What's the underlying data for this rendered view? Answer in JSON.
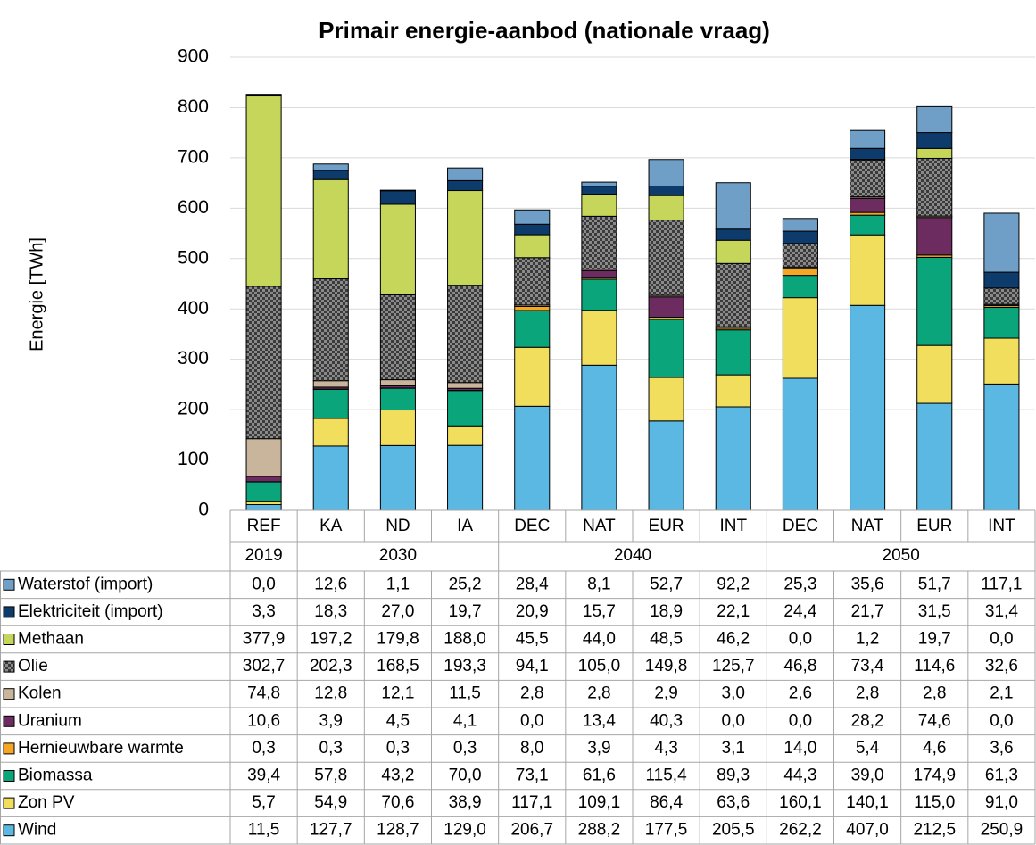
{
  "chart_data": {
    "type": "stacked_bar",
    "title": "Primair energie-aanbod (nationale vraag)",
    "y_label": "Energie [TWh]",
    "categories": [
      "REF",
      "KA",
      "ND",
      "IA",
      "DEC",
      "NAT",
      "EUR",
      "INT",
      "DEC",
      "NAT",
      "EUR",
      "INT"
    ],
    "groups": [
      {
        "label": "2019",
        "count": 1
      },
      {
        "label": "2030",
        "count": 3
      },
      {
        "label": "2040",
        "count": 4
      },
      {
        "label": "2050",
        "count": 4
      }
    ],
    "ylim": [
      0,
      900
    ],
    "yticks": [
      0,
      100,
      200,
      300,
      400,
      500,
      600,
      700,
      800,
      900
    ],
    "grid": true,
    "series": [
      {
        "name": "Waterstof (import)",
        "color": "#6f9fc6",
        "values": [
          0.0,
          12.6,
          1.1,
          25.2,
          28.4,
          8.1,
          52.7,
          92.2,
          25.3,
          35.6,
          51.7,
          117.1
        ],
        "value_labels": [
          "0,0",
          "12,6",
          "1,1",
          "25,2",
          "28,4",
          "8,1",
          "52,7",
          "92,2",
          "25,3",
          "35,6",
          "51,7",
          "117,1"
        ]
      },
      {
        "name": "Elektriciteit (import)",
        "color": "#0d3b6b",
        "values": [
          3.3,
          18.3,
          27.0,
          19.7,
          20.9,
          15.7,
          18.9,
          22.1,
          24.4,
          21.7,
          31.5,
          31.4
        ],
        "value_labels": [
          "3,3",
          "18,3",
          "27,0",
          "19,7",
          "20,9",
          "15,7",
          "18,9",
          "22,1",
          "24,4",
          "21,7",
          "31,5",
          "31,4"
        ]
      },
      {
        "name": "Methaan",
        "color": "#c5d65b",
        "values": [
          377.9,
          197.2,
          179.8,
          188.0,
          45.5,
          44.0,
          48.5,
          46.2,
          0.0,
          1.2,
          19.7,
          0.0
        ],
        "value_labels": [
          "377,9",
          "197,2",
          "179,8",
          "188,0",
          "45,5",
          "44,0",
          "48,5",
          "46,2",
          "0,0",
          "1,2",
          "19,7",
          "0,0"
        ]
      },
      {
        "name": "Olie",
        "color": "#3a3a3a",
        "pattern": "checker",
        "values": [
          302.7,
          202.3,
          168.5,
          193.3,
          94.1,
          105.0,
          149.8,
          125.7,
          46.8,
          73.4,
          114.6,
          32.6
        ],
        "value_labels": [
          "302,7",
          "202,3",
          "168,5",
          "193,3",
          "94,1",
          "105,0",
          "149,8",
          "125,7",
          "46,8",
          "73,4",
          "114,6",
          "32,6"
        ]
      },
      {
        "name": "Kolen",
        "color": "#c9b59c",
        "values": [
          74.8,
          12.8,
          12.1,
          11.5,
          2.8,
          2.8,
          2.9,
          3.0,
          2.6,
          2.8,
          2.8,
          2.1
        ],
        "value_labels": [
          "74,8",
          "12,8",
          "12,1",
          "11,5",
          "2,8",
          "2,8",
          "2,9",
          "3,0",
          "2,6",
          "2,8",
          "2,8",
          "2,1"
        ]
      },
      {
        "name": "Uranium",
        "color": "#6d2c60",
        "values": [
          10.6,
          3.9,
          4.5,
          4.1,
          0.0,
          13.4,
          40.3,
          0.0,
          0.0,
          28.2,
          74.6,
          0.0
        ],
        "value_labels": [
          "10,6",
          "3,9",
          "4,5",
          "4,1",
          "0,0",
          "13,4",
          "40,3",
          "0,0",
          "0,0",
          "28,2",
          "74,6",
          "0,0"
        ]
      },
      {
        "name": "Hernieuwbare warmte",
        "color": "#f5a623",
        "values": [
          0.3,
          0.3,
          0.3,
          0.3,
          8.0,
          3.9,
          4.3,
          3.1,
          14.0,
          5.4,
          4.6,
          3.6
        ],
        "value_labels": [
          "0,3",
          "0,3",
          "0,3",
          "0,3",
          "8,0",
          "3,9",
          "4,3",
          "3,1",
          "14,0",
          "5,4",
          "4,6",
          "3,6"
        ]
      },
      {
        "name": "Biomassa",
        "color": "#0ba57b",
        "values": [
          39.4,
          57.8,
          43.2,
          70.0,
          73.1,
          61.6,
          115.4,
          89.3,
          44.3,
          39.0,
          174.9,
          61.3
        ],
        "value_labels": [
          "39,4",
          "57,8",
          "43,2",
          "70,0",
          "73,1",
          "61,6",
          "115,4",
          "89,3",
          "44,3",
          "39,0",
          "174,9",
          "61,3"
        ]
      },
      {
        "name": "Zon PV",
        "color": "#f1de5c",
        "values": [
          5.7,
          54.9,
          70.6,
          38.9,
          117.1,
          109.1,
          86.4,
          63.6,
          160.1,
          140.1,
          115.0,
          91.0
        ],
        "value_labels": [
          "5,7",
          "54,9",
          "70,6",
          "38,9",
          "117,1",
          "109,1",
          "86,4",
          "63,6",
          "160,1",
          "140,1",
          "115,0",
          "91,0"
        ]
      },
      {
        "name": "Wind",
        "color": "#5ab8e2",
        "values": [
          11.5,
          127.7,
          128.7,
          129.0,
          206.7,
          288.2,
          177.5,
          205.5,
          262.2,
          407.0,
          212.5,
          250.9
        ],
        "value_labels": [
          "11,5",
          "127,7",
          "128,7",
          "129,0",
          "206,7",
          "288,2",
          "177,5",
          "205,5",
          "262,2",
          "407,0",
          "212,5",
          "250,9"
        ]
      }
    ]
  }
}
